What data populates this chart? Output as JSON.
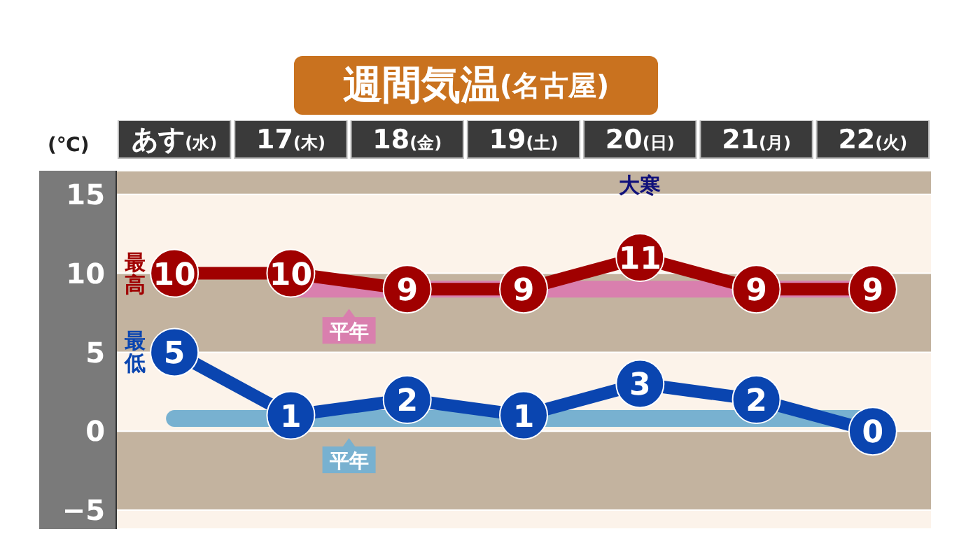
{
  "chart_data": {
    "type": "line",
    "title": "週間気温(名古屋)",
    "ylabel": "(℃)",
    "categories": [
      "あす(水)",
      "17(木)",
      "18(金)",
      "19(土)",
      "20(日)",
      "21(月)",
      "22(火)"
    ],
    "series": [
      {
        "name": "平年",
        "color": "#d97fae",
        "marker": "none",
        "values": [
          null,
          9,
          9,
          9,
          9,
          9,
          9
        ]
      },
      {
        "name": "平年",
        "color": "#78b1d0",
        "marker": "none",
        "values": [
          0.8,
          0.8,
          0.8,
          0.8,
          0.8,
          0.8,
          0.8
        ]
      },
      {
        "name": "最高",
        "color": "#a00000",
        "marker": "circle",
        "values": [
          10,
          10,
          9,
          9,
          11,
          9,
          9
        ],
        "value_labels": [
          "10",
          "10",
          "9",
          "9",
          "11",
          "9",
          "9"
        ]
      },
      {
        "name": "最低",
        "color": "#0a45b0",
        "marker": "circle",
        "values": [
          5,
          1,
          2,
          1,
          3,
          2,
          0
        ],
        "value_labels": [
          "5",
          "1",
          "2",
          "1",
          "3",
          "2",
          "0"
        ]
      }
    ],
    "annotations": [
      "大寒"
    ],
    "ylim": [
      -6.2,
      16.5
    ],
    "yticks": [
      {
        "value": -5,
        "label": "−5"
      },
      0,
      5,
      10,
      15
    ],
    "grid": "y"
  }
}
